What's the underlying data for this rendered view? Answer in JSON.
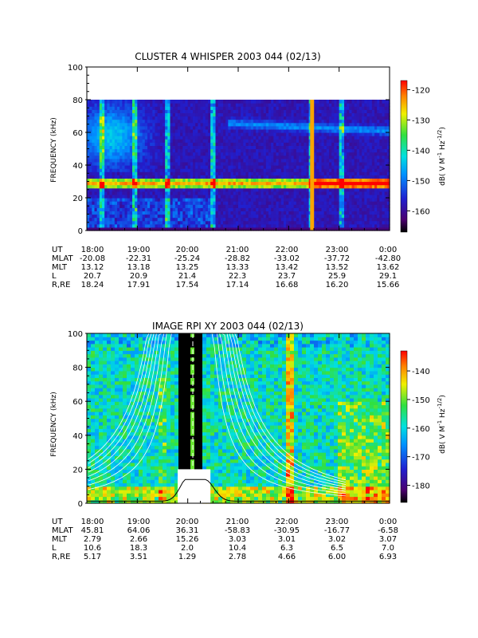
{
  "chart_data": [
    {
      "type": "heatmap",
      "title": "CLUSTER 4 WHISPER 2003 044 (02/13)",
      "ylabel": "FREQUENCY (kHz)",
      "yticks": [
        "0",
        "20",
        "40",
        "60",
        "80",
        "100"
      ],
      "ylim": [
        0,
        100
      ],
      "xlim_hours": [
        18,
        24
      ],
      "data_top_khz": 80,
      "colorbar": {
        "label": "dB( V M",
        "label_sup1": "-1",
        "label_mid": " Hz",
        "label_sup2": "-1/2",
        "label_end": ")",
        "ticks": [
          "-120",
          "-130",
          "-140",
          "-150",
          "-160"
        ],
        "range": [
          -167,
          -117
        ]
      },
      "features": {
        "band_khz": 29,
        "band_level_db": -122,
        "background_db": -158,
        "upper_band_khz": 64,
        "bursts_hours": [
          18.3,
          18.95,
          19.6,
          20.5,
          22.45,
          23.05
        ],
        "strong_burst_hours": [
          22.45,
          22.48
        ]
      },
      "ephemeris": {
        "rows": [
          {
            "label": "UT",
            "values": [
              "18:00",
              "19:00",
              "20:00",
              "21:00",
              "22:00",
              "23:00",
              "0:00"
            ]
          },
          {
            "label": "MLAT",
            "values": [
              "-20.08",
              "-22.31",
              "-25.24",
              "-28.82",
              "-33.02",
              "-37.72",
              "-42.80"
            ]
          },
          {
            "label": "MLT",
            "values": [
              "13.12",
              "13.18",
              "13.25",
              "13.33",
              "13.42",
              "13.52",
              "13.62"
            ]
          },
          {
            "label": "L",
            "values": [
              "20.7",
              "20.9",
              "21.4",
              "22.3",
              "23.7",
              "25.9",
              "29.1"
            ]
          },
          {
            "label": "R,RE",
            "values": [
              "18.24",
              "17.91",
              "17.54",
              "17.14",
              "16.68",
              "16.20",
              "15.66"
            ]
          }
        ]
      }
    },
    {
      "type": "heatmap",
      "title": "IMAGE RPI XY 2003 044 (02/13)",
      "ylabel": "FREQUENCY (kHz)",
      "yticks": [
        "0",
        "20",
        "40",
        "60",
        "80",
        "100"
      ],
      "ylim": [
        0,
        100
      ],
      "xlim_hours": [
        18,
        24
      ],
      "colorbar": {
        "label": "dB( V M",
        "label_sup1": "-1",
        "label_mid": " Hz",
        "label_sup2": "-1/2",
        "label_end": ")",
        "ticks": [
          "-140",
          "-150",
          "-160",
          "-170",
          "-180"
        ],
        "range": [
          -186,
          -133
        ]
      },
      "features": {
        "gap_hours": [
          19.85,
          20.3
        ],
        "background_db": -158,
        "plasma_freq_peak_khz": 13,
        "fce_peaks_khz": [
          13,
          12
        ]
      },
      "ephemeris": {
        "rows": [
          {
            "label": "UT",
            "values": [
              "18:00",
              "19:00",
              "20:00",
              "21:00",
              "22:00",
              "23:00",
              "0:00"
            ]
          },
          {
            "label": "MLAT",
            "values": [
              "45.81",
              "64.06",
              "36.31",
              "-58.83",
              "-30.95",
              "-16.77",
              "-6.58"
            ]
          },
          {
            "label": "MLT",
            "values": [
              "2.79",
              "2.66",
              "15.26",
              "3.03",
              "3.01",
              "3.02",
              "3.07"
            ]
          },
          {
            "label": "L",
            "values": [
              "10.6",
              "18.3",
              "2.0",
              "10.4",
              "6.3",
              "6.5",
              "7.0"
            ]
          },
          {
            "label": "R,RE",
            "values": [
              "5.17",
              "3.51",
              "1.29",
              "2.78",
              "4.66",
              "6.00",
              "6.93"
            ]
          }
        ]
      }
    }
  ]
}
